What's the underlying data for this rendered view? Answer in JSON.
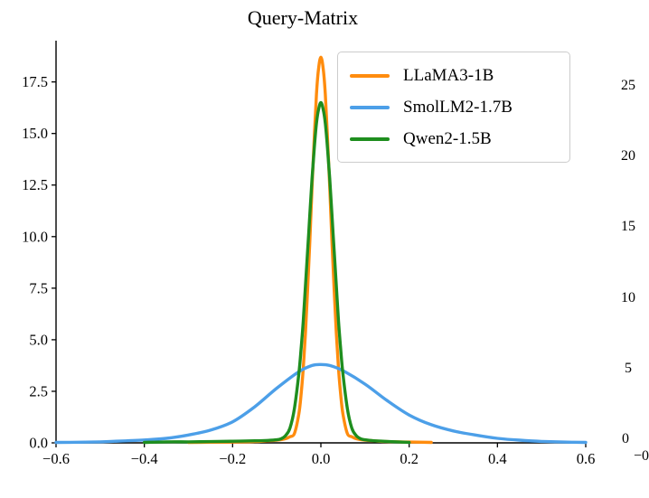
{
  "chart_data": {
    "type": "line",
    "title": "Query-Matrix",
    "xlabel": "",
    "ylabel": "",
    "xlim": [
      -0.6,
      0.6
    ],
    "ylim": [
      0,
      19.5
    ],
    "grid": false,
    "legend_position": "upper right",
    "xticks": [
      {
        "v": -0.6,
        "label": "−0.6"
      },
      {
        "v": -0.4,
        "label": "−0.4"
      },
      {
        "v": -0.2,
        "label": "−0.2"
      },
      {
        "v": 0.0,
        "label": "0.0"
      },
      {
        "v": 0.2,
        "label": "0.2"
      },
      {
        "v": 0.4,
        "label": "0.4"
      },
      {
        "v": 0.6,
        "label": "0.6"
      }
    ],
    "yticks": [
      {
        "v": 0.0,
        "label": "0.0"
      },
      {
        "v": 2.5,
        "label": "2.5"
      },
      {
        "v": 5.0,
        "label": "5.0"
      },
      {
        "v": 7.5,
        "label": "7.5"
      },
      {
        "v": 10.0,
        "label": "10.0"
      },
      {
        "v": 12.5,
        "label": "12.5"
      },
      {
        "v": 15.0,
        "label": "15.0"
      },
      {
        "v": 17.5,
        "label": "17.5"
      }
    ],
    "series": [
      {
        "name": "LLaMA3-1B",
        "color": "#ff8c0e",
        "peak": 18.7,
        "points": [
          [
            -0.3,
            0.02
          ],
          [
            -0.25,
            0.03
          ],
          [
            -0.2,
            0.04
          ],
          [
            -0.15,
            0.06
          ],
          [
            -0.12,
            0.1
          ],
          [
            -0.1,
            0.13
          ],
          [
            -0.08,
            0.2
          ],
          [
            -0.07,
            0.3
          ],
          [
            -0.06,
            0.45
          ],
          [
            -0.05,
            1.4
          ],
          [
            -0.045,
            2.3
          ],
          [
            -0.04,
            3.6
          ],
          [
            -0.035,
            5.3
          ],
          [
            -0.03,
            7.4
          ],
          [
            -0.025,
            9.8
          ],
          [
            -0.02,
            12.4
          ],
          [
            -0.015,
            14.8
          ],
          [
            -0.01,
            16.9
          ],
          [
            -0.005,
            18.2
          ],
          [
            0,
            18.7
          ],
          [
            0.005,
            18.2
          ],
          [
            0.01,
            16.9
          ],
          [
            0.015,
            14.8
          ],
          [
            0.02,
            12.4
          ],
          [
            0.025,
            9.8
          ],
          [
            0.03,
            7.4
          ],
          [
            0.035,
            5.3
          ],
          [
            0.04,
            3.6
          ],
          [
            0.045,
            2.3
          ],
          [
            0.05,
            1.4
          ],
          [
            0.06,
            0.45
          ],
          [
            0.07,
            0.3
          ],
          [
            0.08,
            0.2
          ],
          [
            0.1,
            0.13
          ],
          [
            0.12,
            0.1
          ],
          [
            0.15,
            0.06
          ],
          [
            0.2,
            0.04
          ],
          [
            0.25,
            0.02
          ]
        ]
      },
      {
        "name": "SmolLM2-1.7B",
        "color": "#4c9fe8",
        "peak": 3.8,
        "points": [
          [
            -0.6,
            0.02
          ],
          [
            -0.55,
            0.03
          ],
          [
            -0.5,
            0.05
          ],
          [
            -0.45,
            0.09
          ],
          [
            -0.4,
            0.14
          ],
          [
            -0.35,
            0.22
          ],
          [
            -0.3,
            0.38
          ],
          [
            -0.25,
            0.62
          ],
          [
            -0.2,
            1.02
          ],
          [
            -0.15,
            1.75
          ],
          [
            -0.1,
            2.65
          ],
          [
            -0.05,
            3.45
          ],
          [
            -0.02,
            3.75
          ],
          [
            0,
            3.8
          ],
          [
            0.02,
            3.75
          ],
          [
            0.05,
            3.5
          ],
          [
            0.1,
            2.85
          ],
          [
            0.15,
            2.05
          ],
          [
            0.2,
            1.35
          ],
          [
            0.25,
            0.88
          ],
          [
            0.3,
            0.58
          ],
          [
            0.35,
            0.38
          ],
          [
            0.4,
            0.22
          ],
          [
            0.45,
            0.13
          ],
          [
            0.5,
            0.07
          ],
          [
            0.55,
            0.04
          ],
          [
            0.6,
            0.02
          ]
        ]
      },
      {
        "name": "Qwen2-1.5B",
        "color": "#1e8e1e",
        "peak": 16.5,
        "points": [
          [
            -0.4,
            0.02
          ],
          [
            -0.35,
            0.05
          ],
          [
            -0.3,
            0.05
          ],
          [
            -0.25,
            0.06
          ],
          [
            -0.2,
            0.08
          ],
          [
            -0.15,
            0.1
          ],
          [
            -0.12,
            0.12
          ],
          [
            -0.1,
            0.15
          ],
          [
            -0.09,
            0.2
          ],
          [
            -0.08,
            0.35
          ],
          [
            -0.07,
            0.72
          ],
          [
            -0.06,
            1.66
          ],
          [
            -0.05,
            3.35
          ],
          [
            -0.045,
            4.5
          ],
          [
            -0.04,
            5.9
          ],
          [
            -0.035,
            7.6
          ],
          [
            -0.03,
            9.3
          ],
          [
            -0.025,
            11.1
          ],
          [
            -0.02,
            12.8
          ],
          [
            -0.015,
            14.3
          ],
          [
            -0.01,
            15.5
          ],
          [
            -0.005,
            16.2
          ],
          [
            0,
            16.5
          ],
          [
            0.005,
            16.2
          ],
          [
            0.01,
            15.5
          ],
          [
            0.015,
            14.3
          ],
          [
            0.02,
            12.8
          ],
          [
            0.025,
            11.1
          ],
          [
            0.03,
            9.3
          ],
          [
            0.035,
            7.6
          ],
          [
            0.04,
            5.9
          ],
          [
            0.045,
            4.5
          ],
          [
            0.05,
            3.35
          ],
          [
            0.06,
            1.66
          ],
          [
            0.07,
            0.72
          ],
          [
            0.08,
            0.35
          ],
          [
            0.09,
            0.2
          ],
          [
            0.1,
            0.15
          ],
          [
            0.12,
            0.1
          ],
          [
            0.15,
            0.07
          ],
          [
            0.18,
            0.04
          ],
          [
            0.2,
            0.02
          ]
        ]
      }
    ]
  },
  "right_chart_partial": {
    "ytick_labels": [
      "25",
      "20",
      "15",
      "10",
      "5",
      "0"
    ],
    "xtick_label_partial": "−0"
  },
  "style": {
    "axis_color": "#000000",
    "legend_border_color": "#cccccc",
    "background": "#ffffff"
  }
}
